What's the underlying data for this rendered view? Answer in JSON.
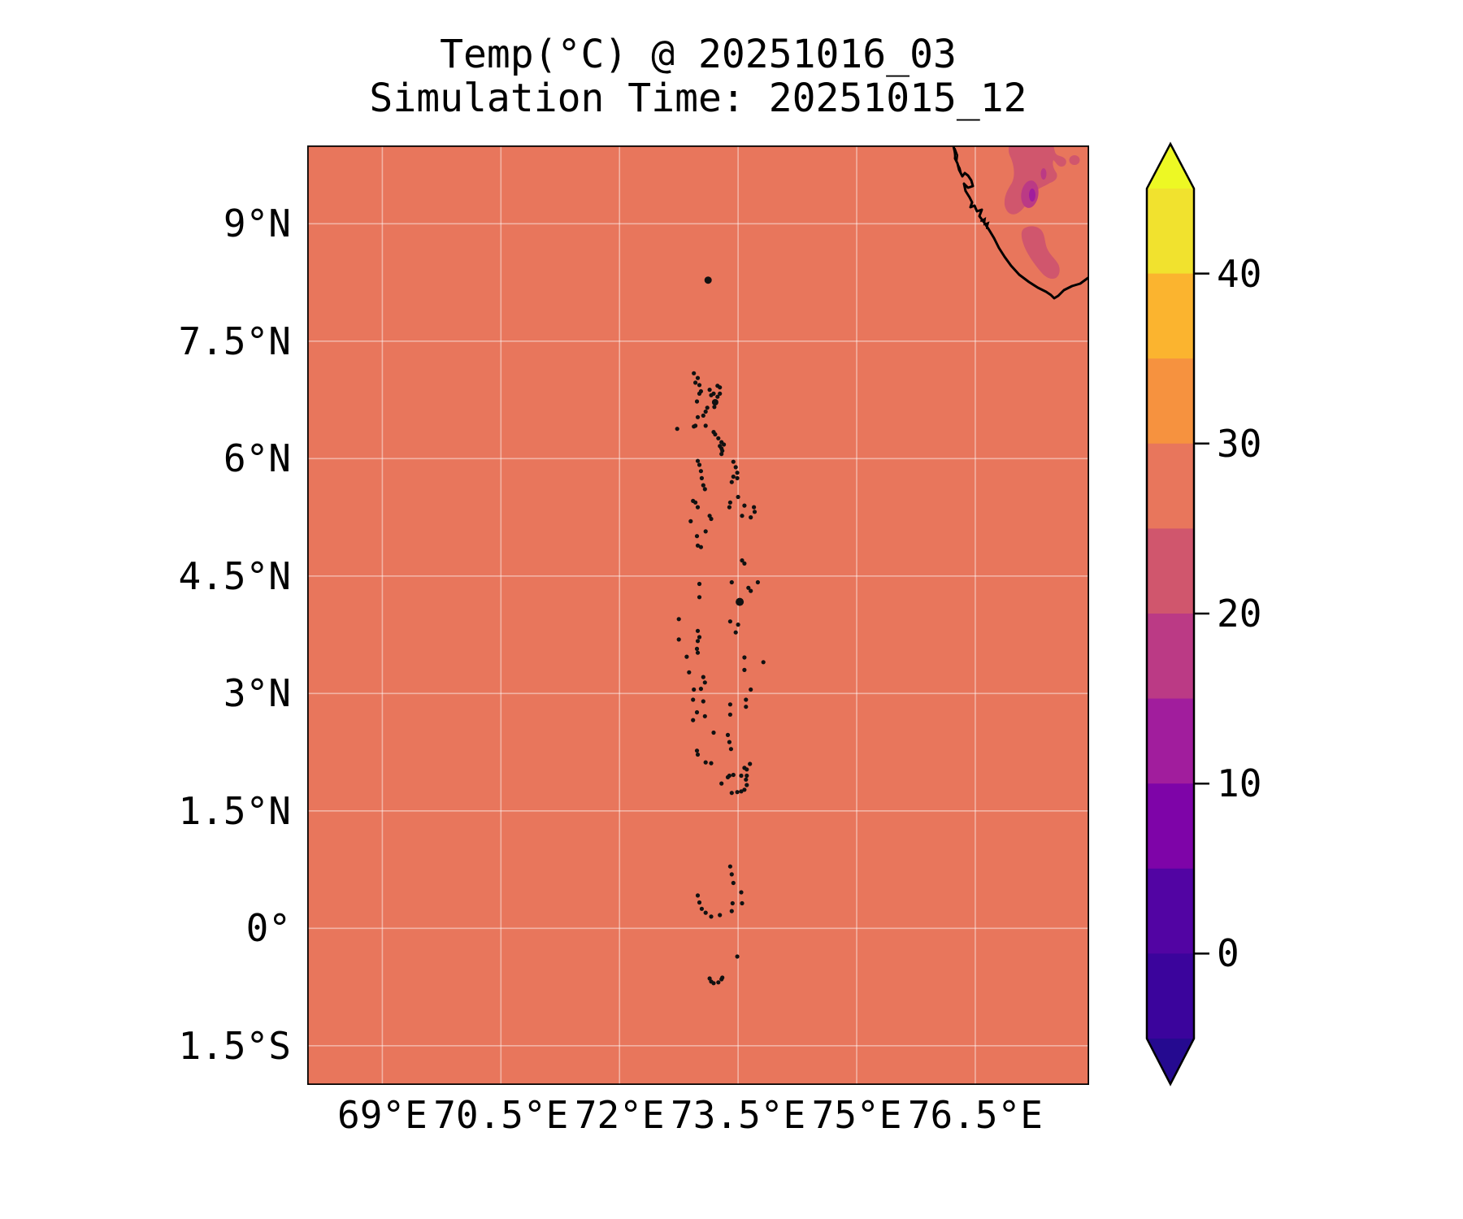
{
  "chart_data": {
    "type": "heatmap",
    "subtype": "filled-contour-geographic-map",
    "title": "Temp(°C) @ 20251016_03",
    "subtitle": "Simulation Time: 20251015_12",
    "units": "°C",
    "extent": {
      "lon_min": 68.05,
      "lon_max": 77.94,
      "lat_min": -2.0,
      "lat_max": 10.0
    },
    "grid": "on",
    "lon_ticks": [
      {
        "label": "69°E",
        "value": 69.0
      },
      {
        "label": "70.5°E",
        "value": 70.5
      },
      {
        "label": "72°E",
        "value": 72.0
      },
      {
        "label": "73.5°E",
        "value": 73.5
      },
      {
        "label": "75°E",
        "value": 75.0
      },
      {
        "label": "76.5°E",
        "value": 76.5
      }
    ],
    "lat_ticks": [
      {
        "label": "9°N",
        "value": 9.0
      },
      {
        "label": "7.5°N",
        "value": 7.5
      },
      {
        "label": "6°N",
        "value": 6.0
      },
      {
        "label": "4.5°N",
        "value": 4.5
      },
      {
        "label": "3°N",
        "value": 3.0
      },
      {
        "label": "1.5°N",
        "value": 1.5
      },
      {
        "label": "0°",
        "value": 0.0
      },
      {
        "label": "1.5°S",
        "value": -1.5
      }
    ],
    "colorbar": {
      "orientation": "vertical",
      "value_min": -5,
      "value_max": 45,
      "band_step": 5,
      "extend": "both",
      "ticks": [
        {
          "label": "40",
          "value": 40
        },
        {
          "label": "30",
          "value": 30
        },
        {
          "label": "20",
          "value": 20
        },
        {
          "label": "10",
          "value": 10
        },
        {
          "label": "0",
          "value": 0
        }
      ],
      "bands_top_to_bottom": [
        {
          "range": "40–45",
          "color": "#f1e22e"
        },
        {
          "range": "35–40",
          "color": "#fbb42f"
        },
        {
          "range": "30–35",
          "color": "#f6923f"
        },
        {
          "range": "25–30",
          "color": "#e8765c"
        },
        {
          "range": "20–25",
          "color": "#d0566d"
        },
        {
          "range": "15–20",
          "color": "#bb3a85"
        },
        {
          "range": "10–15",
          "color": "#a11d9d"
        },
        {
          "range": "5–10",
          "color": "#7e04a8"
        },
        {
          "range": "0–5",
          "color": "#5204a3"
        },
        {
          "range": "-5–0",
          "color": "#3b049c"
        }
      ],
      "extend_top_color": "#edf824",
      "extend_bottom_color": "#250a90"
    },
    "features": {
      "sea": "uniform 25–30 °C band over the entire ocean",
      "cool_patches": "20–25 °C patches over SW India high ground with embedded 15–20 °C and 10–15 °C cores (top-right of map)",
      "coastline": "southwest India coastline entering the top edge near 76.2°E and exiting the right edge near 8.3°N",
      "islands": "Maldives and Minicoy island chain ~72.7–73.8°E from 0.7°S to 8.3°N drawn as small black dots"
    },
    "islands_lon_lat": [
      [
        73.12,
        8.28,
        4.5
      ],
      [
        72.94,
        7.09
      ],
      [
        72.99,
        7.03
      ],
      [
        72.96,
        6.97
      ],
      [
        73.01,
        6.94
      ],
      [
        73.03,
        6.86
      ],
      [
        73.14,
        6.88
      ],
      [
        73.24,
        6.93
      ],
      [
        73.27,
        6.91
      ],
      [
        73.19,
        6.83
      ],
      [
        73.16,
        6.81
      ],
      [
        73.01,
        6.83
      ],
      [
        72.98,
        6.73
      ],
      [
        73.24,
        6.79
      ],
      [
        73.27,
        6.83
      ],
      [
        73.21,
        6.72,
        4
      ],
      [
        73.2,
        6.66
      ],
      [
        73.11,
        6.65
      ],
      [
        73.09,
        6.6
      ],
      [
        73.06,
        6.55
      ],
      [
        72.99,
        6.53
      ],
      [
        72.96,
        6.42
      ],
      [
        72.73,
        6.38
      ],
      [
        72.94,
        6.41
      ],
      [
        73.09,
        6.42
      ],
      [
        73.19,
        6.34
      ],
      [
        73.21,
        6.31
      ],
      [
        73.25,
        6.26
      ],
      [
        73.29,
        6.21
      ],
      [
        73.32,
        6.18
      ],
      [
        73.27,
        6.16
      ],
      [
        73.29,
        6.13
      ],
      [
        73.3,
        6.1
      ],
      [
        73.29,
        6.06
      ],
      [
        72.99,
        5.97
      ],
      [
        73.01,
        5.92
      ],
      [
        73.03,
        5.84
      ],
      [
        73.04,
        5.75
      ],
      [
        73.06,
        5.66
      ],
      [
        73.08,
        5.61
      ],
      [
        73.44,
        5.96
      ],
      [
        73.47,
        5.89
      ],
      [
        73.49,
        5.82
      ],
      [
        73.49,
        5.75
      ],
      [
        73.44,
        5.77
      ],
      [
        73.42,
        5.7
      ],
      [
        73.5,
        5.51
      ],
      [
        73.4,
        5.44
      ],
      [
        73.39,
        5.38
      ],
      [
        73.58,
        5.4
      ],
      [
        73.7,
        5.38
      ],
      [
        73.71,
        5.32
      ],
      [
        73.66,
        5.25
      ],
      [
        73.55,
        5.27
      ],
      [
        72.93,
        5.46
      ],
      [
        72.96,
        5.44
      ],
      [
        72.99,
        5.38
      ],
      [
        72.9,
        5.2
      ],
      [
        72.98,
        5.01
      ],
      [
        72.99,
        4.89
      ],
      [
        73.03,
        4.87
      ],
      [
        73.09,
        5.07
      ],
      [
        73.14,
        5.27
      ],
      [
        73.16,
        5.23
      ],
      [
        73.55,
        4.7
      ],
      [
        73.58,
        4.66
      ],
      [
        73.01,
        4.4
      ],
      [
        73.42,
        4.42
      ],
      [
        73.75,
        4.42
      ],
      [
        73.63,
        4.35
      ],
      [
        73.66,
        4.31
      ],
      [
        73.01,
        4.23
      ],
      [
        73.52,
        4.17,
        5
      ],
      [
        72.75,
        3.95
      ],
      [
        73.4,
        3.92
      ],
      [
        73.5,
        3.88
      ],
      [
        73.47,
        3.78
      ],
      [
        72.99,
        3.8
      ],
      [
        73.01,
        3.72
      ],
      [
        72.99,
        3.67
      ],
      [
        72.75,
        3.69
      ],
      [
        72.98,
        3.57
      ],
      [
        72.99,
        3.52
      ],
      [
        72.85,
        3.47
      ],
      [
        73.58,
        3.46
      ],
      [
        73.82,
        3.4
      ],
      [
        72.88,
        3.27
      ],
      [
        73.06,
        3.21
      ],
      [
        73.08,
        3.14
      ],
      [
        72.94,
        3.05
      ],
      [
        73.03,
        3.06
      ],
      [
        73.58,
        3.3
      ],
      [
        73.66,
        3.05
      ],
      [
        72.93,
        2.92
      ],
      [
        73.06,
        2.9
      ],
      [
        73.6,
        2.92
      ],
      [
        73.6,
        2.83
      ],
      [
        73.4,
        2.86
      ],
      [
        72.98,
        2.76
      ],
      [
        73.4,
        2.73
      ],
      [
        73.08,
        2.71
      ],
      [
        72.93,
        2.66
      ],
      [
        73.19,
        2.5
      ],
      [
        73.37,
        2.47
      ],
      [
        73.39,
        2.38
      ],
      [
        73.41,
        2.29
      ],
      [
        72.98,
        2.27
      ],
      [
        72.99,
        2.22
      ],
      [
        73.09,
        2.12
      ],
      [
        73.16,
        2.11
      ],
      [
        73.58,
        2.05
      ],
      [
        73.61,
        2.03
      ],
      [
        73.39,
        1.95
      ],
      [
        73.61,
        1.95
      ],
      [
        73.65,
        2.1
      ],
      [
        73.29,
        1.85
      ],
      [
        73.37,
        1.93
      ],
      [
        73.44,
        1.96
      ],
      [
        73.54,
        1.95
      ],
      [
        73.6,
        1.9
      ],
      [
        73.61,
        1.83
      ],
      [
        73.58,
        1.77
      ],
      [
        73.54,
        1.75
      ],
      [
        73.49,
        1.74
      ],
      [
        73.42,
        1.73
      ],
      [
        72.99,
        0.42
      ],
      [
        73.01,
        0.33
      ],
      [
        73.04,
        0.25
      ],
      [
        73.09,
        0.2
      ],
      [
        73.16,
        0.15
      ],
      [
        73.27,
        0.17
      ],
      [
        73.42,
        0.22
      ],
      [
        73.43,
        0.32
      ],
      [
        73.44,
        0.58
      ],
      [
        73.42,
        0.69
      ],
      [
        73.4,
        0.79
      ],
      [
        73.54,
        0.46
      ],
      [
        73.55,
        0.32
      ],
      [
        73.49,
        -0.36
      ],
      [
        73.14,
        -0.64
      ],
      [
        73.16,
        -0.68
      ],
      [
        73.19,
        -0.7
      ],
      [
        73.25,
        -0.69
      ],
      [
        73.29,
        -0.65
      ],
      [
        73.3,
        -0.63
      ]
    ]
  },
  "colors": {
    "background": "#ffffff",
    "sea": "#e8765c",
    "grid": "rgba(255,255,255,0.45)",
    "coast": "#000000",
    "frame": "#000000",
    "island": "#111111",
    "patch_rose": "#d0566d",
    "patch_magenta": "#bb3a85",
    "patch_purple": "#a11d9d",
    "text": "#000000"
  }
}
